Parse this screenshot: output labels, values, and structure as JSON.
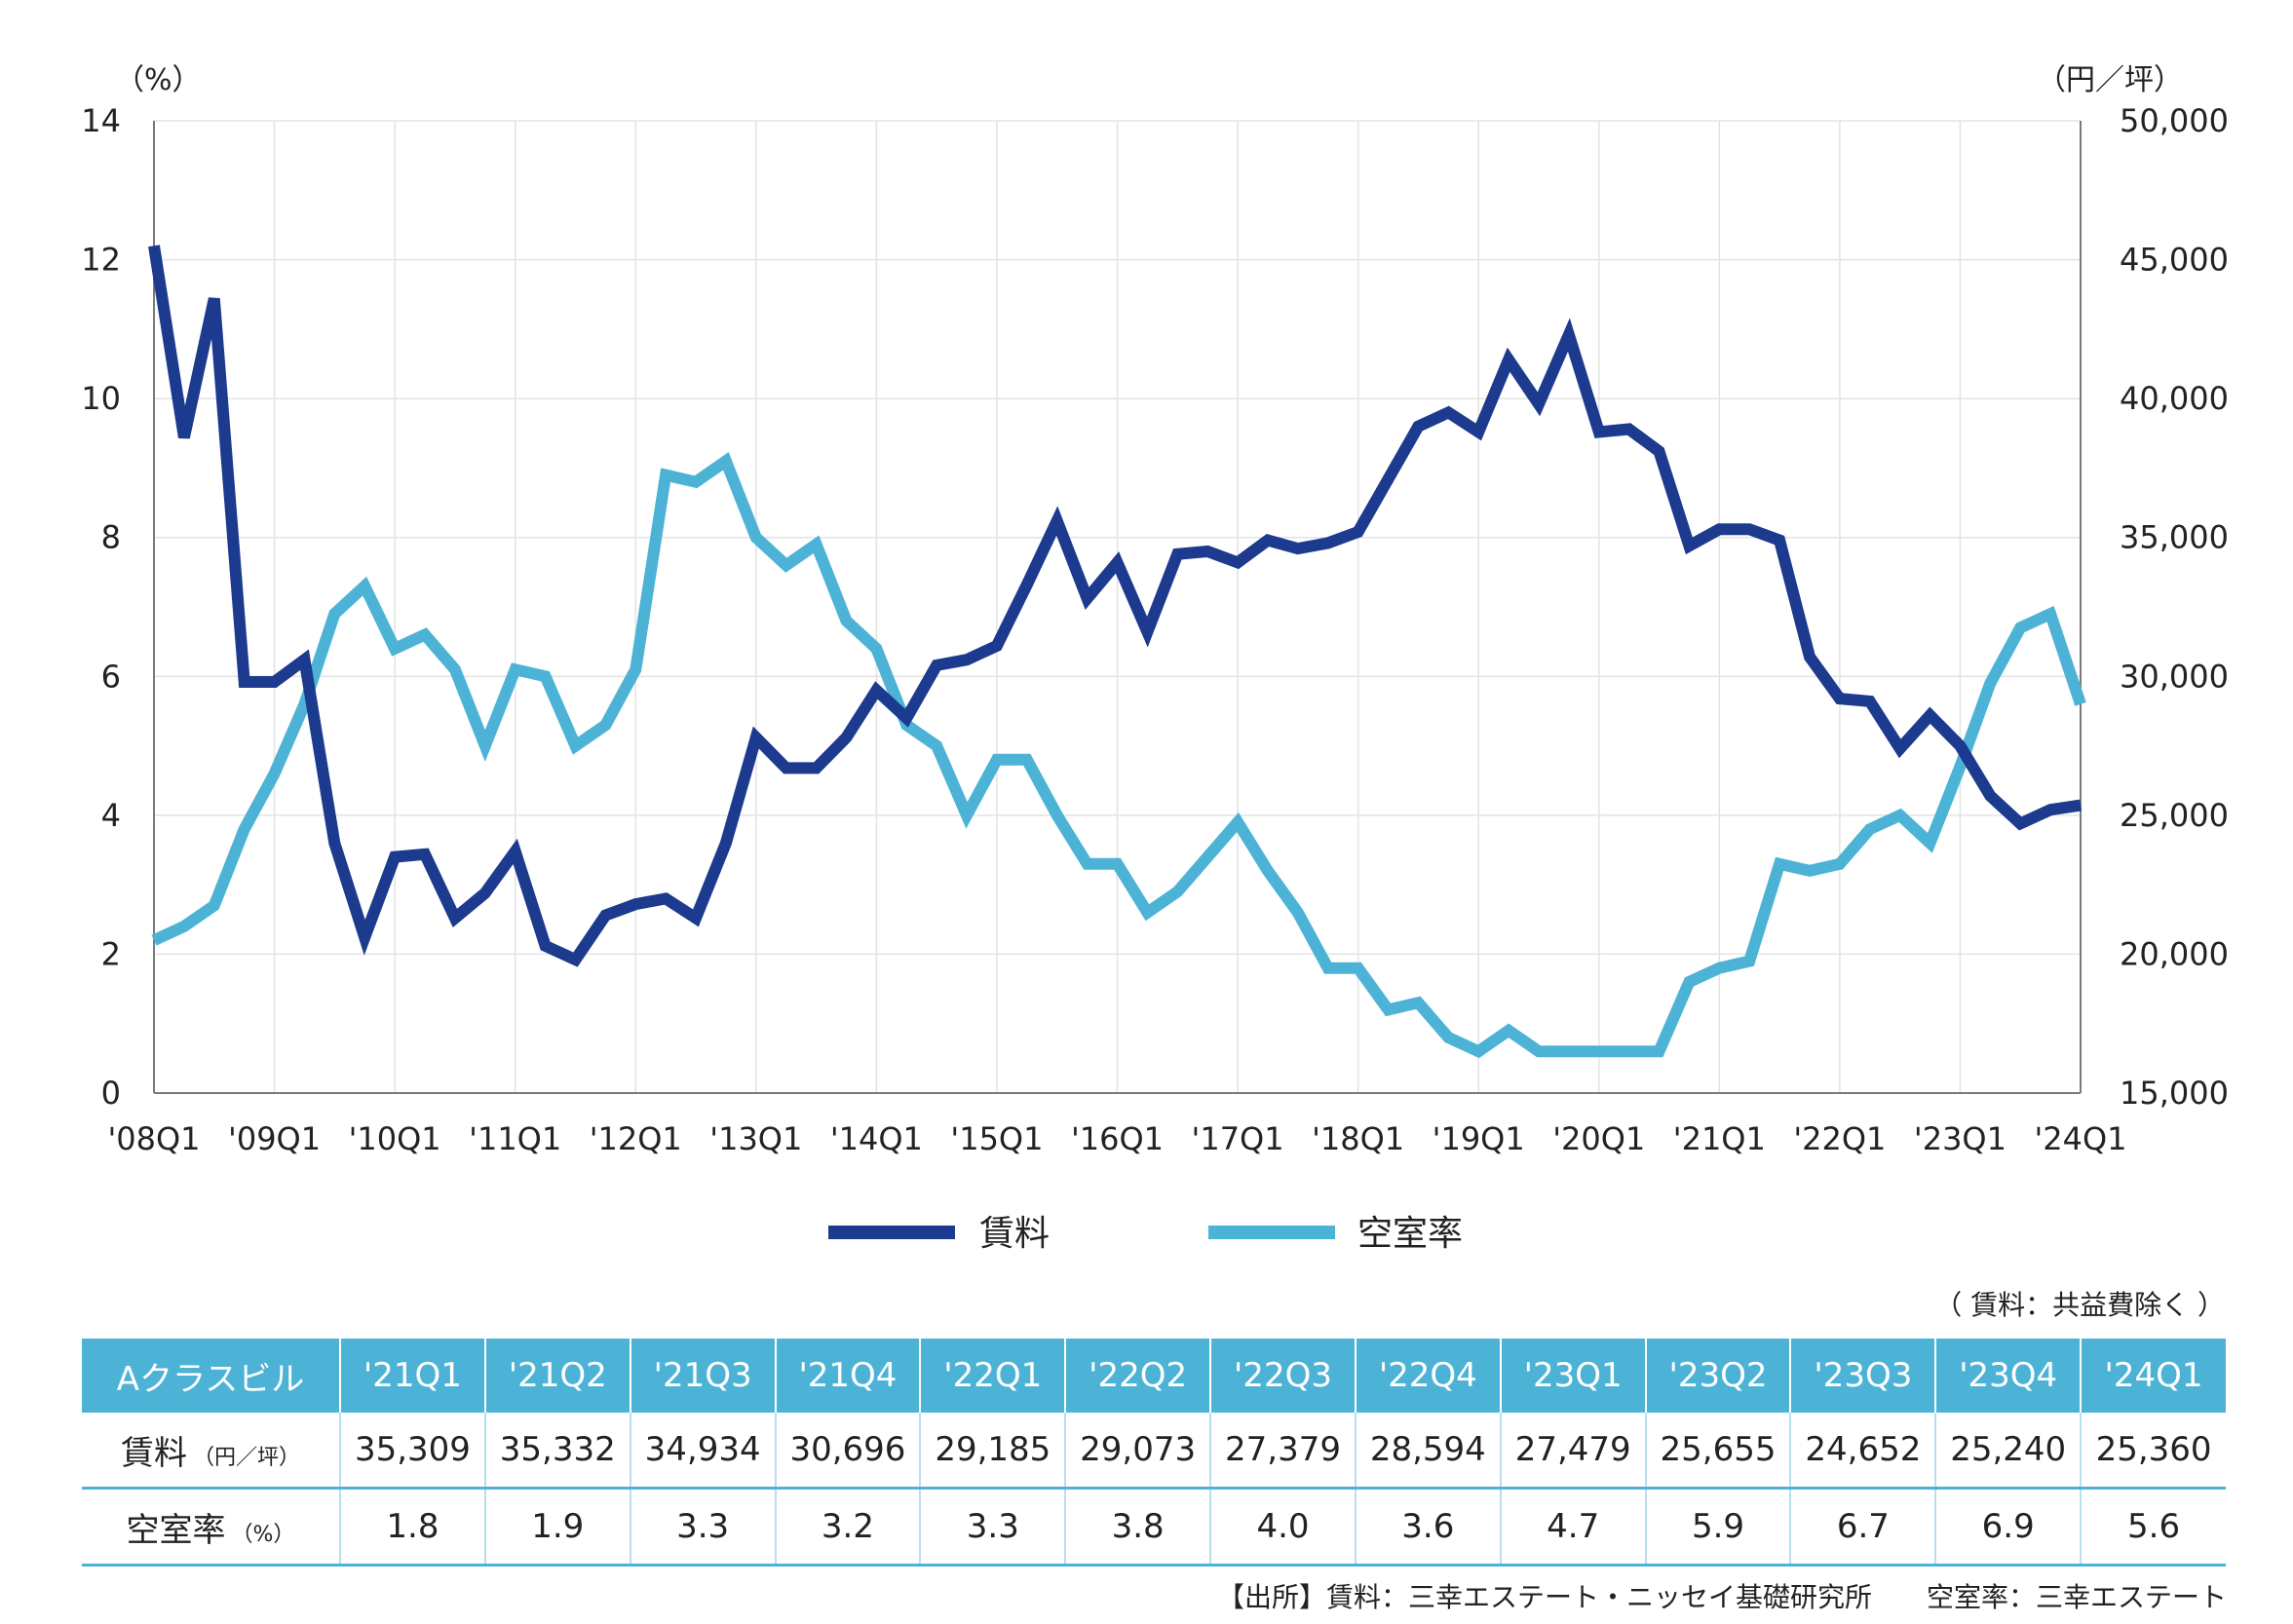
{
  "chart_data": {
    "type": "line",
    "left_unit": "（%）",
    "right_unit": "（円／坪）",
    "left_axis": {
      "min": 0,
      "max": 14,
      "ticks": [
        "0",
        "2",
        "4",
        "6",
        "8",
        "10",
        "12",
        "14"
      ]
    },
    "right_axis": {
      "min": 15000,
      "max": 50000,
      "ticks": [
        "15,000",
        "20,000",
        "25,000",
        "30,000",
        "35,000",
        "40,000",
        "45,000",
        "50,000"
      ]
    },
    "x_tick_labels": [
      "'08Q1",
      "'09Q1",
      "'10Q1",
      "'11Q1",
      "'12Q1",
      "'13Q1",
      "'14Q1",
      "'15Q1",
      "'16Q1",
      "'17Q1",
      "'18Q1",
      "'19Q1",
      "'20Q1",
      "'21Q1",
      "'22Q1",
      "'23Q1",
      "'24Q1"
    ],
    "grid": true,
    "legend_position": "bottom",
    "series": [
      {
        "name": "賃料",
        "axis": "right",
        "color": "#1c3a8e",
        "values": [
          45500,
          38600,
          43600,
          29800,
          29800,
          30600,
          24000,
          20600,
          23500,
          23600,
          21300,
          22200,
          23700,
          20300,
          19800,
          21400,
          21800,
          22000,
          21300,
          24000,
          27800,
          26700,
          26700,
          27800,
          29500,
          28500,
          30400,
          30600,
          31100,
          33300,
          35600,
          32800,
          34100,
          31600,
          34400,
          34500,
          34100,
          34900,
          34600,
          34800,
          35200,
          37100,
          39000,
          39500,
          38800,
          41400,
          39800,
          42300,
          38800,
          38900,
          38100,
          34700,
          35300,
          35300,
          34900,
          30700,
          29200,
          29100,
          27400,
          28600,
          27500,
          25700,
          24700,
          25200,
          25360
        ]
      },
      {
        "name": "空室率",
        "axis": "left",
        "color": "#4db3d6",
        "values": [
          2.2,
          2.4,
          2.7,
          3.8,
          4.6,
          5.6,
          6.9,
          7.3,
          6.4,
          6.6,
          6.1,
          5.0,
          6.1,
          6.0,
          5.0,
          5.3,
          6.1,
          8.9,
          8.8,
          9.1,
          8.0,
          7.6,
          7.9,
          6.8,
          6.4,
          5.3,
          5.0,
          4.0,
          4.8,
          4.8,
          4.0,
          3.3,
          3.3,
          2.6,
          2.9,
          3.4,
          3.9,
          3.2,
          2.6,
          1.8,
          1.8,
          1.2,
          1.3,
          0.8,
          0.6,
          0.9,
          0.6,
          0.6,
          0.6,
          0.6,
          0.6,
          1.6,
          1.8,
          1.9,
          3.3,
          3.2,
          3.3,
          3.8,
          4.0,
          3.6,
          4.7,
          5.9,
          6.7,
          6.9,
          5.6
        ]
      }
    ]
  },
  "rent_note": "（ 賃料：共益費除く ）",
  "table": {
    "header_label": "Aクラスビル",
    "columns": [
      "'21Q1",
      "'21Q2",
      "'21Q3",
      "'21Q4",
      "'22Q1",
      "'22Q2",
      "'22Q3",
      "'22Q4",
      "'23Q1",
      "'23Q2",
      "'23Q3",
      "'23Q4",
      "'24Q1"
    ],
    "rent_label": "賃料",
    "rent_unit": "（円／坪）",
    "rent_values": [
      "35,309",
      "35,332",
      "34,934",
      "30,696",
      "29,185",
      "29,073",
      "27,379",
      "28,594",
      "27,479",
      "25,655",
      "24,652",
      "25,240",
      "25,360"
    ],
    "vacancy_label": "空室率",
    "vacancy_unit": "（%）",
    "vacancy_values": [
      "1.8",
      "1.9",
      "3.3",
      "3.2",
      "3.3",
      "3.8",
      "4.0",
      "3.6",
      "4.7",
      "5.9",
      "6.7",
      "6.9",
      "5.6"
    ]
  },
  "source": "【出所】賃料：三幸エステート・ニッセイ基礎研究所　　空室率：三幸エステート"
}
